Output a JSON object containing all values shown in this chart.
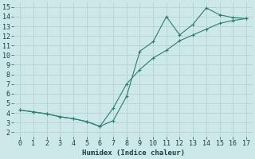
{
  "xlabel": "Humidex (Indice chaleur)",
  "background_color": "#cde8e8",
  "line_color": "#2e7d6e",
  "grid_color": "#b8d4d4",
  "xlim": [
    -0.5,
    17.5
  ],
  "ylim": [
    1.5,
    15.5
  ],
  "yticks": [
    2,
    3,
    4,
    5,
    6,
    7,
    8,
    9,
    10,
    11,
    12,
    13,
    14,
    15
  ],
  "xticks": [
    0,
    1,
    2,
    3,
    4,
    5,
    6,
    7,
    8,
    9,
    10,
    11,
    12,
    13,
    14,
    15,
    16,
    17
  ],
  "line1_x": [
    0,
    1,
    2,
    3,
    4,
    5,
    6,
    7,
    8,
    9,
    10,
    11,
    12,
    13,
    14,
    15,
    16,
    17
  ],
  "line1_y": [
    4.3,
    4.1,
    3.9,
    3.6,
    3.4,
    3.1,
    2.6,
    3.2,
    5.7,
    10.4,
    11.4,
    14.0,
    12.1,
    13.2,
    14.9,
    14.2,
    13.9,
    13.8
  ],
  "line2_x": [
    0,
    1,
    2,
    3,
    4,
    5,
    6,
    7,
    8,
    9,
    10,
    11,
    12,
    13,
    14,
    15,
    16,
    17
  ],
  "line2_y": [
    4.3,
    4.1,
    3.9,
    3.6,
    3.4,
    3.1,
    2.6,
    4.5,
    7.0,
    8.5,
    9.7,
    10.5,
    11.5,
    12.1,
    12.7,
    13.3,
    13.6,
    13.8
  ],
  "tick_fontsize": 6,
  "xlabel_fontsize": 6.5
}
